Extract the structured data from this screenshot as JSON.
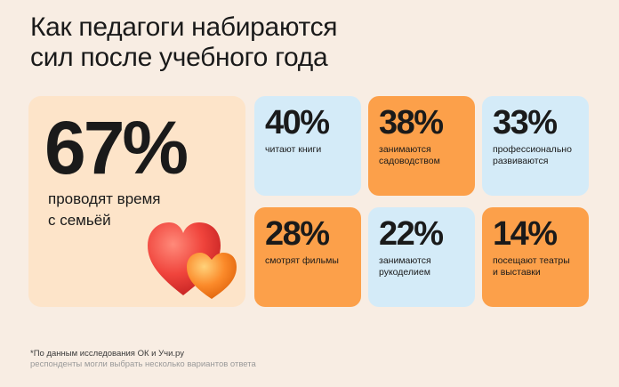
{
  "title": "Как педагоги набираются\nсил после учебного года",
  "main_stat": {
    "percent": "67%",
    "label": "проводят время\nс семьёй"
  },
  "stats": [
    {
      "percent": "40%",
      "label": "читают книги",
      "color": "#d4ebf8"
    },
    {
      "percent": "38%",
      "label": "занимаются\nсадоводством",
      "color": "#fca04a"
    },
    {
      "percent": "33%",
      "label": "профессионально\nразвиваются",
      "color": "#d4ebf8"
    },
    {
      "percent": "28%",
      "label": "смотрят фильмы",
      "color": "#fca04a"
    },
    {
      "percent": "22%",
      "label": "занимаются\nрукоделием",
      "color": "#d4ebf8"
    },
    {
      "percent": "14%",
      "label": "посещают театры\nи выставки",
      "color": "#fca04a"
    }
  ],
  "footnote": {
    "source": "*По данным исследования ОК и Учи.ру",
    "note": "респонденты могли выбрать несколько вариантов ответа"
  },
  "decoration": {
    "icon": "hearts-icon",
    "colors": [
      "#f0443c",
      "#fb8a2a"
    ]
  }
}
